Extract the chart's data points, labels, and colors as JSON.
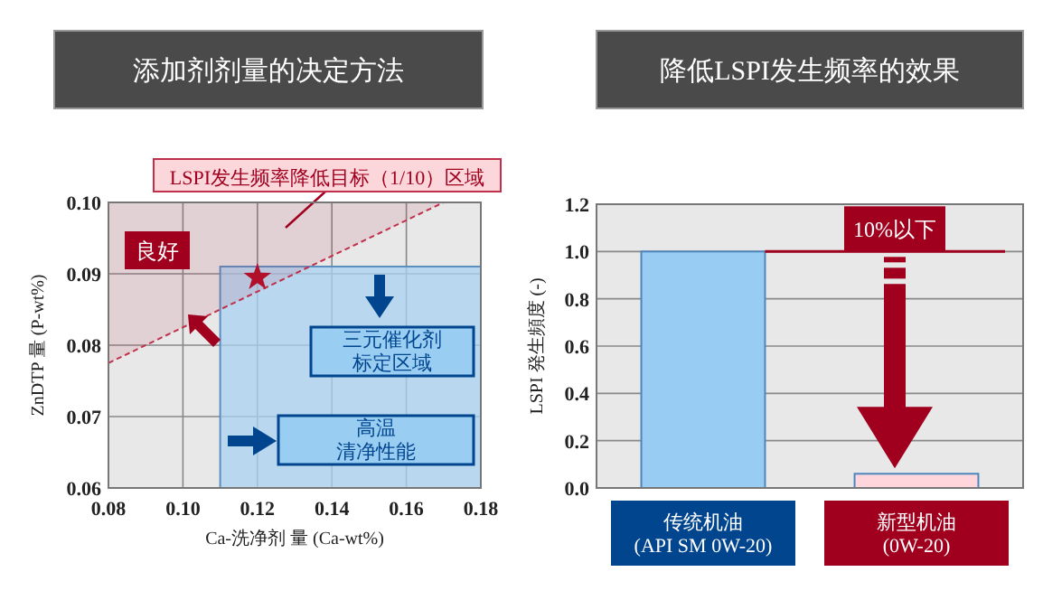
{
  "chart_data": [
    {
      "type": "line",
      "title": "添加剂剂量的决定方法",
      "xlabel": "Ca-洗净剂 量 (Ca-wt%)",
      "ylabel": "ZnDTP 量 (P-wt%)",
      "xlim": [
        0.08,
        0.18
      ],
      "xticks": [
        {
          "value": 0.08,
          "label": "0.08"
        },
        {
          "value": 0.1,
          "label": "0.10"
        },
        {
          "value": 0.12,
          "label": "0.12"
        },
        {
          "value": 0.14,
          "label": "0.14"
        },
        {
          "value": 0.16,
          "label": "0.16"
        },
        {
          "value": 0.18,
          "label": "0.18"
        }
      ],
      "ylim": [
        0.06,
        0.1
      ],
      "yticks": [
        0.06,
        0.07,
        0.08,
        0.09,
        {
          "value": 0.1,
          "label": "0.10"
        }
      ],
      "grid": true,
      "series": [
        {
          "type": "area",
          "color": "#a9d3f2",
          "x": [
            0.11,
            0.18
          ],
          "values": [
            0.091,
            0.091
          ]
        },
        {
          "type": "line",
          "color": "#c0304a",
          "line_style": "dashed",
          "x": [
            0.08,
            0.17
          ],
          "values": [
            0.0775,
            0.1
          ]
        },
        {
          "type": "scatter",
          "color": "#b0102a",
          "marker": "star",
          "x": [
            0.12
          ],
          "values": [
            0.0895
          ]
        }
      ],
      "annotations": [
        "LSPI发生频率降低目标（1/10）区域",
        "良好",
        "三元催化剂标定区域",
        "高温清净性能"
      ]
    },
    {
      "type": "bar",
      "title": "降低LSPI发生频率的效果",
      "ylabel": "LSPI 発生頻度 (-)",
      "categories": [
        "传统机油\n(API SM 0W-20)",
        "新型机油\n(0W-20)"
      ],
      "values": [
        1.0,
        0.06
      ],
      "colors": [
        "#99ccf2",
        "#ffd6dc"
      ],
      "ylim": [
        0,
        1.2
      ],
      "yticks": [
        {
          "value": 0,
          "label": "0.0"
        },
        {
          "value": 0.2,
          "label": "0.2"
        },
        {
          "value": 0.4,
          "label": "0.4"
        },
        {
          "value": 0.6,
          "label": "0.6"
        },
        {
          "value": 0.8,
          "label": "0.8"
        },
        {
          "value": 1,
          "label": "1.0"
        },
        {
          "value": 1.2,
          "label": "1.2"
        }
      ],
      "grid": "y",
      "ref_lines": [
        {
          "axis": "y",
          "value": 1.0,
          "label": "10%以下",
          "color": "#a0001e"
        }
      ]
    }
  ]
}
